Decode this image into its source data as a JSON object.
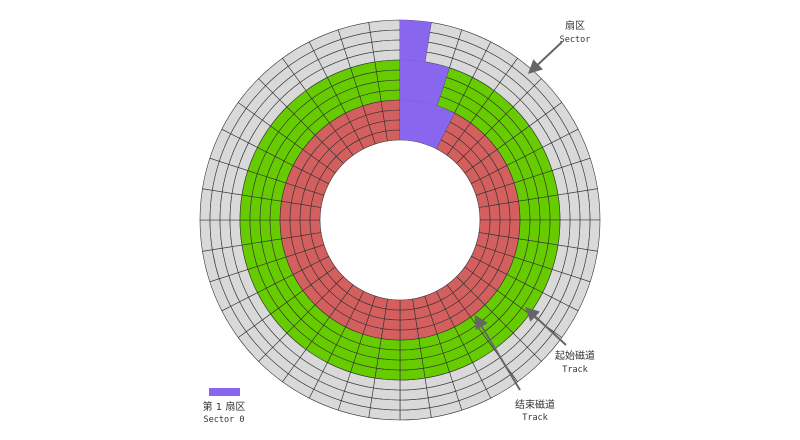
{
  "disk": {
    "sectors_per_track": 40,
    "tracks": [
      {
        "zone": "outer",
        "count": 4
      },
      {
        "zone": "start",
        "count": 4
      },
      {
        "zone": "end",
        "count": 4
      }
    ],
    "colors": {
      "outer": "#d9d9d9",
      "start": "#66cc00",
      "end": "#d45f5f",
      "highlight": "#8866ee",
      "gridline": "#333333"
    },
    "highlight_sector_span_per_zone": [
      1,
      2,
      3
    ]
  },
  "labels": {
    "sector": {
      "cn": "扇区",
      "en": "Sector"
    },
    "start_track": {
      "cn": "起始磁道",
      "en": "Track"
    },
    "end_track": {
      "cn": "结束磁道",
      "en": "Track"
    },
    "legend": {
      "cn": "第 1 扇区",
      "en": "Sector 0"
    }
  }
}
